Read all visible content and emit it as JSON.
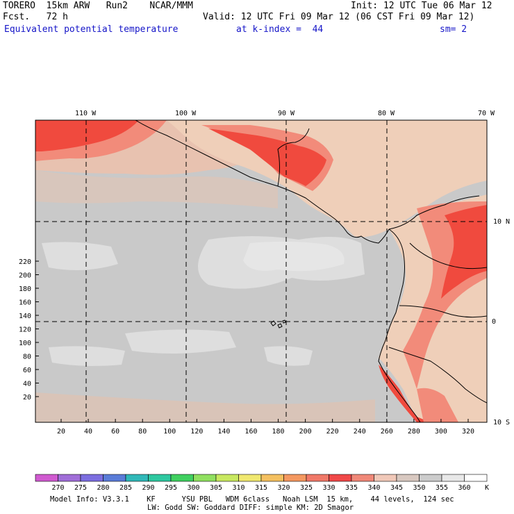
{
  "header": {
    "model": "TORERO  15km ARW   Run2    NCAR/MMM",
    "init": "Init: 12 UTC Tue 06 Mar 12",
    "fcst": "Fcst.   72 h",
    "valid": "Valid: 12 UTC Fri 09 Mar 12 (06 CST Fri 09 Mar 12)",
    "field": "Equivalent potential temperature",
    "level": "at k-index =  44",
    "smooth": "sm= 2"
  },
  "map": {
    "top_lon_labels": [
      "110 W",
      "100 W",
      "90 W",
      "80 W",
      "70 W"
    ],
    "right_lat_labels": [
      "10 N",
      "0",
      "10 S"
    ],
    "y_tick_labels": [
      "20",
      "40",
      "60",
      "80",
      "100",
      "120",
      "140",
      "160",
      "180",
      "200",
      "220"
    ],
    "x_tick_labels": [
      "20",
      "40",
      "60",
      "80",
      "100",
      "120",
      "140",
      "160",
      "180",
      "200",
      "220",
      "240",
      "260",
      "280",
      "300",
      "320"
    ],
    "ocean_color": "#c9c9c9",
    "land_color": "#efcfb9",
    "warm_color": "#f28b7a",
    "hot_color": "#f04a3e",
    "cold_color": "#e8e8e8"
  },
  "colorbar": {
    "labels": [
      "270",
      "275",
      "280",
      "285",
      "290",
      "295",
      "300",
      "305",
      "310",
      "315",
      "320",
      "325",
      "330",
      "335",
      "340",
      "345",
      "350",
      "355",
      "360"
    ],
    "unit": "K",
    "colors": [
      "#d05ad0",
      "#a06ed8",
      "#7c6ee0",
      "#5a7cd8",
      "#30b8b8",
      "#2ec8a0",
      "#40d060",
      "#90e060",
      "#c8e860",
      "#f0e870",
      "#f4c060",
      "#f49860",
      "#f07868",
      "#f04848",
      "#f08878",
      "#f0c8b8",
      "#d8c8c0",
      "#cccccc",
      "#e8e8e8",
      "#ffffff"
    ]
  },
  "footer": {
    "line1": "Model Info: V3.3.1    KF      YSU PBL   WDM 6class   Noah LSM  15 km,    44 levels,  124 sec",
    "line2": "LW: Godd SW: Goddard DIFF: simple KM: 2D Smagor"
  }
}
